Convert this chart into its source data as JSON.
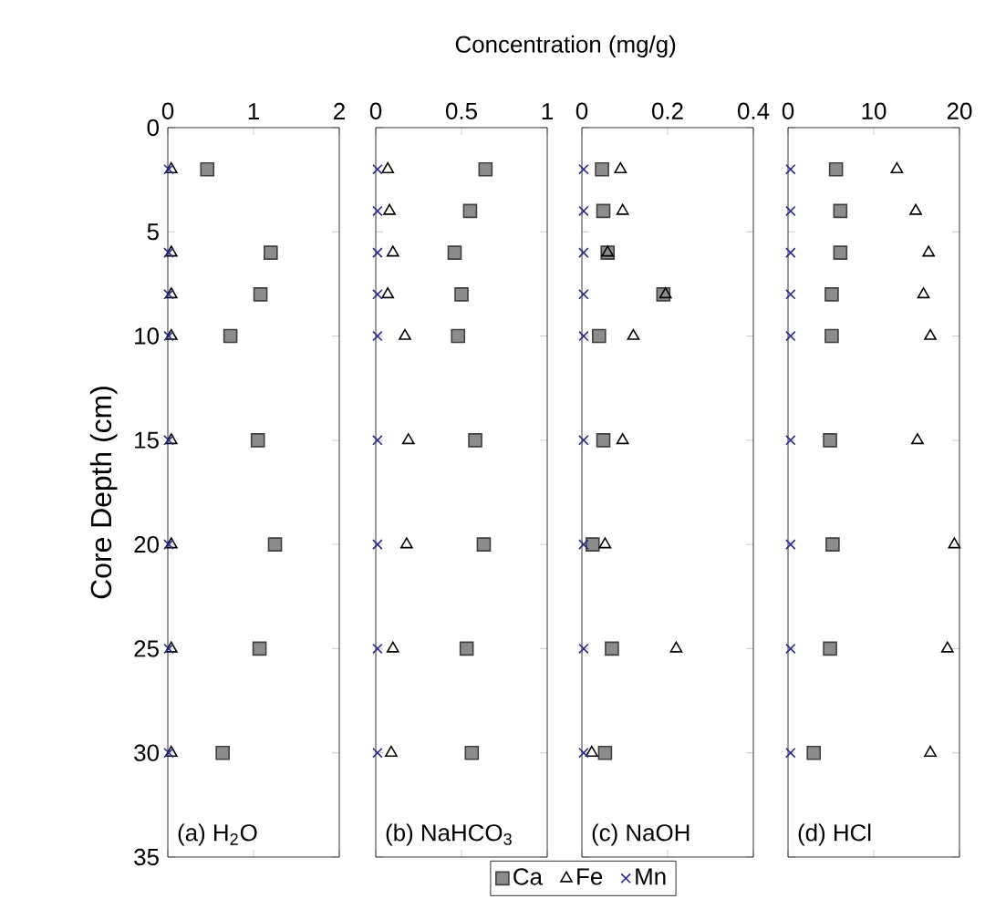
{
  "chart_data": [
    {
      "type": "scatter",
      "xlabel": "Concentration (mg/g)",
      "ylabel": "Core Depth (cm)",
      "xlim": [
        0,
        2
      ],
      "xticks": [
        0,
        1,
        2
      ],
      "ylim": [
        35,
        0
      ],
      "yticks": [
        0,
        5,
        10,
        15,
        20,
        25,
        30,
        35
      ],
      "annotations": [
        "(a) H$_{2}$O"
      ],
      "series": [
        {
          "color": "#8c8c8c",
          "marker": "square",
          "x": [
            0.46,
            1.2,
            1.08,
            0.73,
            1.05,
            1.25,
            1.07,
            0.64
          ],
          "values": [
            2,
            6,
            8,
            10,
            15,
            20,
            25,
            30
          ]
        },
        {
          "color": "#000000",
          "marker": "triangle",
          "x": [
            0.04,
            0.04,
            0.04,
            0.04,
            0.04,
            0.04,
            0.04,
            0.04
          ],
          "values": [
            2,
            6,
            8,
            10,
            15,
            20,
            25,
            30
          ]
        },
        {
          "color": "#2b2b8c",
          "marker": "cross",
          "x": [
            0.01,
            0.01,
            0.01,
            0.01,
            0.01,
            0.01,
            0.01,
            0.01
          ],
          "values": [
            2,
            6,
            8,
            10,
            15,
            20,
            25,
            30
          ]
        }
      ]
    },
    {
      "type": "scatter",
      "xlim": [
        0,
        1
      ],
      "xticks": [
        0,
        0.5,
        1
      ],
      "ylim": [
        35,
        0
      ],
      "yticks": [
        0,
        5,
        10,
        15,
        20,
        25,
        30,
        35
      ],
      "tick_labels": "x",
      "legend": "bottom",
      "annotations": [
        "(b) NaHCO$_{3}$"
      ],
      "series": [
        {
          "name": "Ca",
          "color": "#8c8c8c",
          "marker": "square",
          "x": [
            0.64,
            0.55,
            0.46,
            0.5,
            0.48,
            0.58,
            0.63,
            0.53,
            0.56
          ],
          "values": [
            2,
            4,
            6,
            8,
            10,
            15,
            20,
            25,
            30
          ]
        },
        {
          "name": "Fe",
          "color": "#000000",
          "marker": "triangle",
          "x": [
            0.07,
            0.08,
            0.1,
            0.07,
            0.17,
            0.19,
            0.18,
            0.1,
            0.09
          ],
          "values": [
            2,
            4,
            6,
            8,
            10,
            15,
            20,
            25,
            30
          ]
        },
        {
          "name": "Mn",
          "color": "#2b2b8c",
          "marker": "cross",
          "x": [
            0.01,
            0.01,
            0.01,
            0.01,
            0.01,
            0.01,
            0.01,
            0.01,
            0.01
          ],
          "values": [
            2,
            4,
            6,
            8,
            10,
            15,
            20,
            25,
            30
          ]
        }
      ]
    },
    {
      "type": "scatter",
      "xlim": [
        0,
        0.4
      ],
      "xticks": [
        0,
        0.2,
        0.4
      ],
      "ylim": [
        35,
        0
      ],
      "yticks": [
        0,
        5,
        10,
        15,
        20,
        25,
        30,
        35
      ],
      "tick_labels": "x",
      "annotations": [
        "(c) NaOH"
      ],
      "series": [
        {
          "color": "#8c8c8c",
          "marker": "square",
          "x": [
            0.047,
            0.05,
            0.06,
            0.19,
            0.04,
            0.05,
            0.025,
            0.07,
            0.054
          ],
          "values": [
            2,
            4,
            6,
            8,
            10,
            15,
            20,
            25,
            30
          ]
        },
        {
          "color": "#000000",
          "marker": "triangle",
          "x": [
            0.09,
            0.095,
            0.06,
            0.195,
            0.12,
            0.095,
            0.054,
            0.22,
            0.023
          ],
          "values": [
            2,
            4,
            6,
            8,
            10,
            15,
            20,
            25,
            30
          ]
        },
        {
          "color": "#2b2b8c",
          "marker": "cross",
          "x": [
            0.004,
            0.004,
            0.004,
            0.004,
            0.004,
            0.004,
            0.004,
            0.004,
            0.004
          ],
          "values": [
            2,
            4,
            6,
            8,
            10,
            15,
            20,
            25,
            30
          ]
        }
      ]
    },
    {
      "type": "scatter",
      "xlim": [
        0,
        20
      ],
      "xticks": [
        0,
        10,
        20
      ],
      "ylim": [
        35,
        0
      ],
      "yticks": [
        0,
        5,
        10,
        15,
        20,
        25,
        30,
        35
      ],
      "tick_labels": "x",
      "annotations": [
        "(d) HCl"
      ],
      "series": [
        {
          "color": "#8c8c8c",
          "marker": "square",
          "x": [
            5.6,
            6.1,
            6.1,
            5.1,
            5.1,
            4.9,
            5.2,
            4.9,
            3.0
          ],
          "values": [
            2,
            4,
            6,
            8,
            10,
            15,
            20,
            25,
            30
          ]
        },
        {
          "color": "#000000",
          "marker": "triangle",
          "x": [
            12.7,
            14.9,
            16.4,
            15.8,
            16.6,
            15.1,
            19.4,
            18.6,
            16.6
          ],
          "values": [
            2,
            4,
            6,
            8,
            10,
            15,
            20,
            25,
            30
          ]
        },
        {
          "color": "#2b2b8c",
          "marker": "cross",
          "x": [
            0.3,
            0.3,
            0.3,
            0.3,
            0.3,
            0.3,
            0.3,
            0.3,
            0.3
          ],
          "values": [
            2,
            4,
            6,
            8,
            10,
            15,
            20,
            25,
            30
          ]
        }
      ]
    }
  ]
}
